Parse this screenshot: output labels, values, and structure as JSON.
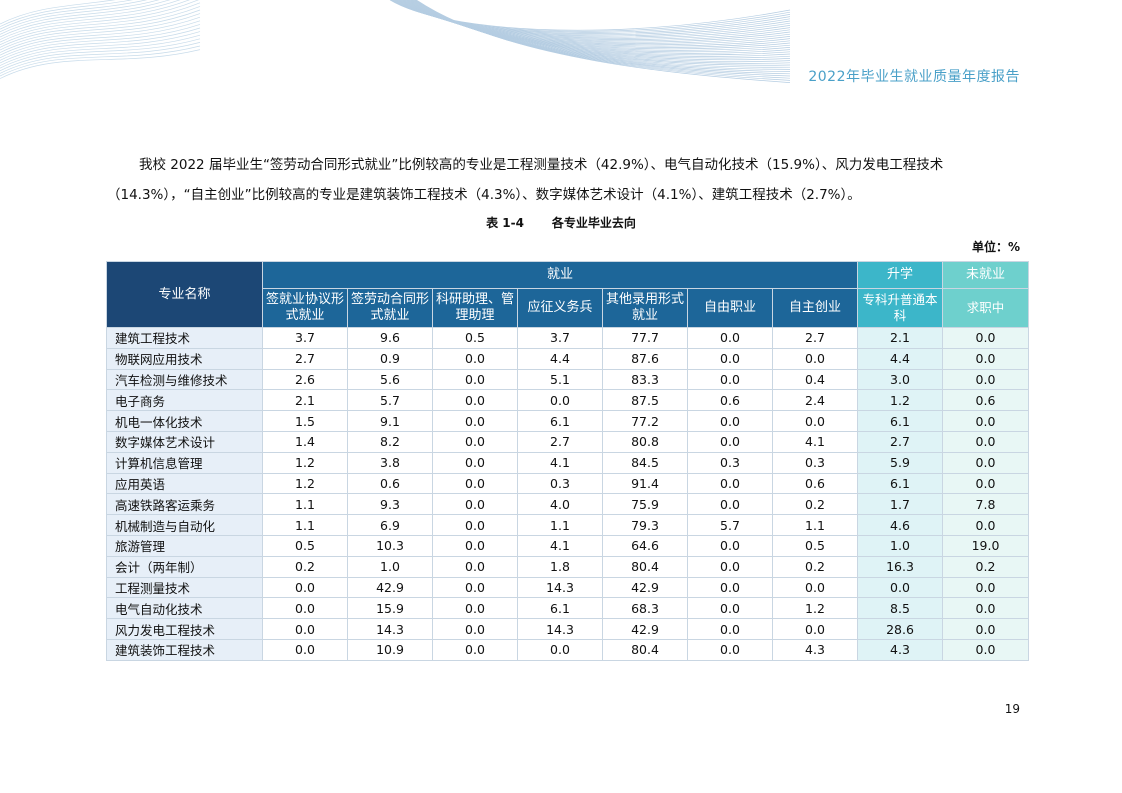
{
  "header": {
    "report_title": "2022年毕业生就业质量年度报告"
  },
  "paragraph": "我校 2022 届毕业生“签劳动合同形式就业”比例较高的专业是工程测量技术（42.9%）、电气自动化技术（15.9%）、风力发电工程技术（14.3%），“自主创业”比例较高的专业是建筑装饰工程技术（4.3%）、数字媒体艺术设计（4.1%）、建筑工程技术（2.7%）。",
  "table": {
    "caption_number": "表 1-4",
    "caption_title": "各专业毕业去向",
    "unit": "单位：%",
    "header_name": "专业名称",
    "group_employment": "就业",
    "group_further_study": "升学",
    "group_unemployed": "未就业",
    "columns": [
      "签就业协议形式就业",
      "签劳动合同形式就业",
      "科研助理、管理助理",
      "应征义务兵",
      "其他录用形式就业",
      "自由职业",
      "自主创业",
      "专科升普通本科",
      "求职中"
    ],
    "rows": [
      {
        "name": "建筑工程技术",
        "values": [
          "3.7",
          "9.6",
          "0.5",
          "3.7",
          "77.7",
          "0.0",
          "2.7",
          "2.1",
          "0.0"
        ]
      },
      {
        "name": "物联网应用技术",
        "values": [
          "2.7",
          "0.9",
          "0.0",
          "4.4",
          "87.6",
          "0.0",
          "0.0",
          "4.4",
          "0.0"
        ]
      },
      {
        "name": "汽车检测与维修技术",
        "values": [
          "2.6",
          "5.6",
          "0.0",
          "5.1",
          "83.3",
          "0.0",
          "0.4",
          "3.0",
          "0.0"
        ]
      },
      {
        "name": "电子商务",
        "values": [
          "2.1",
          "5.7",
          "0.0",
          "0.0",
          "87.5",
          "0.6",
          "2.4",
          "1.2",
          "0.6"
        ]
      },
      {
        "name": "机电一体化技术",
        "values": [
          "1.5",
          "9.1",
          "0.0",
          "6.1",
          "77.2",
          "0.0",
          "0.0",
          "6.1",
          "0.0"
        ]
      },
      {
        "name": "数字媒体艺术设计",
        "values": [
          "1.4",
          "8.2",
          "0.0",
          "2.7",
          "80.8",
          "0.0",
          "4.1",
          "2.7",
          "0.0"
        ]
      },
      {
        "name": "计算机信息管理",
        "values": [
          "1.2",
          "3.8",
          "0.0",
          "4.1",
          "84.5",
          "0.3",
          "0.3",
          "5.9",
          "0.0"
        ]
      },
      {
        "name": "应用英语",
        "values": [
          "1.2",
          "0.6",
          "0.0",
          "0.3",
          "91.4",
          "0.0",
          "0.6",
          "6.1",
          "0.0"
        ]
      },
      {
        "name": "高速铁路客运乘务",
        "values": [
          "1.1",
          "9.3",
          "0.0",
          "4.0",
          "75.9",
          "0.0",
          "0.2",
          "1.7",
          "7.8"
        ]
      },
      {
        "name": "机械制造与自动化",
        "values": [
          "1.1",
          "6.9",
          "0.0",
          "1.1",
          "79.3",
          "5.7",
          "1.1",
          "4.6",
          "0.0"
        ]
      },
      {
        "name": "旅游管理",
        "values": [
          "0.5",
          "10.3",
          "0.0",
          "4.1",
          "64.6",
          "0.0",
          "0.5",
          "1.0",
          "19.0"
        ]
      },
      {
        "name": "会计（两年制）",
        "values": [
          "0.2",
          "1.0",
          "0.0",
          "1.8",
          "80.4",
          "0.0",
          "0.2",
          "16.3",
          "0.2"
        ]
      },
      {
        "name": "工程测量技术",
        "values": [
          "0.0",
          "42.9",
          "0.0",
          "14.3",
          "42.9",
          "0.0",
          "0.0",
          "0.0",
          "0.0"
        ]
      },
      {
        "name": "电气自动化技术",
        "values": [
          "0.0",
          "15.9",
          "0.0",
          "6.1",
          "68.3",
          "0.0",
          "1.2",
          "8.5",
          "0.0"
        ]
      },
      {
        "name": "风力发电工程技术",
        "values": [
          "0.0",
          "14.3",
          "0.0",
          "14.3",
          "42.9",
          "0.0",
          "0.0",
          "28.6",
          "0.0"
        ]
      },
      {
        "name": "建筑装饰工程技术",
        "values": [
          "0.0",
          "10.9",
          "0.0",
          "0.0",
          "80.4",
          "0.0",
          "4.3",
          "4.3",
          "0.0"
        ]
      }
    ]
  },
  "page_number": "19",
  "colors": {
    "header_text": "#4aa0c8",
    "name_header": "#1c4775",
    "employment_header": "#1d6699",
    "further_study_header": "#3cb6c9",
    "unemployed_header": "#6ed0cd",
    "name_cell": "#e7eff8"
  }
}
